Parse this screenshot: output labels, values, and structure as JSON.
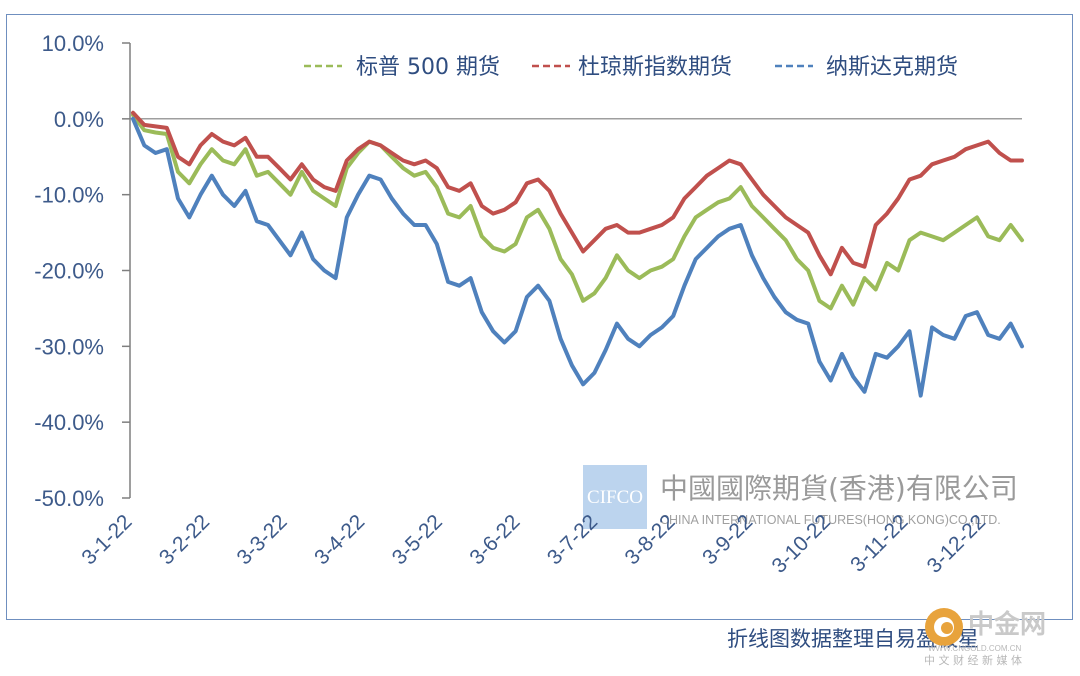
{
  "chart_data": {
    "type": "line",
    "title": "",
    "xlabel": "",
    "ylabel": "",
    "ylim": [
      -50,
      10
    ],
    "yticks": [
      10,
      0,
      -10,
      -20,
      -30,
      -40,
      -50
    ],
    "ytick_labels": [
      "10.0%",
      "0.0%",
      "-10.0%",
      "-20.0%",
      "-30.0%",
      "-40.0%",
      "-50.0%"
    ],
    "x_tick_labels": [
      "3-1-22",
      "3-2-22",
      "3-3-22",
      "3-4-22",
      "3-5-22",
      "3-6-22",
      "3-7-22",
      "3-8-22",
      "3-9-22",
      "3-10-22",
      "3-11-22",
      "3-12-22"
    ],
    "legend_position": "top",
    "grid": false,
    "series": [
      {
        "name": "标普 500 期货",
        "color": "#9bbb59",
        "values": [
          0.5,
          -1.5,
          -1.8,
          -2.0,
          -7.0,
          -8.5,
          -6.0,
          -4.0,
          -5.5,
          -6.0,
          -4.0,
          -7.5,
          -7.0,
          -8.5,
          -10.0,
          -7.0,
          -9.5,
          -10.5,
          -11.5,
          -6.5,
          -4.5,
          -3.0,
          -3.5,
          -5.0,
          -6.5,
          -7.5,
          -7.0,
          -9.0,
          -12.5,
          -13.0,
          -11.5,
          -15.5,
          -17.0,
          -17.5,
          -16.5,
          -13.0,
          -12.0,
          -14.5,
          -18.5,
          -20.5,
          -24.0,
          -23.0,
          -21.0,
          -18.0,
          -20.0,
          -21.0,
          -20.0,
          -19.5,
          -18.5,
          -15.5,
          -13.0,
          -12.0,
          -11.0,
          -10.5,
          -9.0,
          -11.5,
          -13.0,
          -14.5,
          -16.0,
          -18.5,
          -20.0,
          -24.0,
          -25.0,
          -22.0,
          -24.5,
          -21.0,
          -22.5,
          -19.0,
          -20.0,
          -16.0,
          -15.0,
          -15.5,
          -16.0,
          -15.0,
          -14.0,
          -13.0,
          -15.5,
          -16.0,
          -14.0,
          -16.0
        ]
      },
      {
        "name": "杜琼斯指数期货",
        "color": "#c0504d",
        "values": [
          0.8,
          -0.8,
          -1.0,
          -1.2,
          -5.0,
          -6.0,
          -3.5,
          -2.0,
          -3.0,
          -3.5,
          -2.5,
          -5.0,
          -5.0,
          -6.5,
          -8.0,
          -6.0,
          -8.0,
          -9.0,
          -9.5,
          -5.5,
          -4.0,
          -3.0,
          -3.5,
          -4.5,
          -5.5,
          -6.0,
          -5.5,
          -6.5,
          -9.0,
          -9.5,
          -8.5,
          -11.5,
          -12.5,
          -12.0,
          -11.0,
          -8.5,
          -8.0,
          -9.5,
          -12.5,
          -15.0,
          -17.5,
          -16.0,
          -14.5,
          -14.0,
          -15.0,
          -15.0,
          -14.5,
          -14.0,
          -13.0,
          -10.5,
          -9.0,
          -7.5,
          -6.5,
          -5.5,
          -6.0,
          -8.0,
          -10.0,
          -11.5,
          -13.0,
          -14.0,
          -15.0,
          -18.0,
          -20.5,
          -17.0,
          -19.0,
          -19.5,
          -14.0,
          -12.5,
          -10.5,
          -8.0,
          -7.5,
          -6.0,
          -5.5,
          -5.0,
          -4.0,
          -3.5,
          -3.0,
          -4.5,
          -5.5,
          -5.5
        ]
      },
      {
        "name": "纳斯达克期货",
        "color": "#4f81bd",
        "values": [
          0.0,
          -3.5,
          -4.5,
          -4.0,
          -10.5,
          -13.0,
          -10.0,
          -7.5,
          -10.0,
          -11.5,
          -9.5,
          -13.5,
          -14.0,
          -16.0,
          -18.0,
          -15.0,
          -18.5,
          -20.0,
          -21.0,
          -13.0,
          -10.0,
          -7.5,
          -8.0,
          -10.5,
          -12.5,
          -14.0,
          -14.0,
          -16.5,
          -21.5,
          -22.0,
          -21.0,
          -25.5,
          -28.0,
          -29.5,
          -28.0,
          -23.5,
          -22.0,
          -24.0,
          -29.0,
          -32.5,
          -35.0,
          -33.5,
          -30.5,
          -27.0,
          -29.0,
          -30.0,
          -28.5,
          -27.5,
          -26.0,
          -22.0,
          -18.5,
          -17.0,
          -15.5,
          -14.5,
          -14.0,
          -18.0,
          -21.0,
          -23.5,
          -25.5,
          -26.5,
          -27.0,
          -32.0,
          -34.5,
          -31.0,
          -34.0,
          -36.0,
          -31.0,
          -31.5,
          -30.0,
          -28.0,
          -36.5,
          -27.5,
          -28.5,
          -29.0,
          -26.0,
          -25.5,
          -28.5,
          -29.0,
          -27.0,
          -30.0
        ]
      }
    ]
  },
  "watermark": {
    "logo_text": "CIFCO",
    "company_cn": "中國國際期貨(香港)有限公司",
    "company_en": "CHINA INTERNATIONAL FUTURES(HONG KONG)CO.,LTD."
  },
  "caption": "折线图数据整理自易盈极星",
  "site": {
    "name_cn": "中金网",
    "subtitle": "中 文 财 经 新 媒 体",
    "url": "WWW.CNGOLD.COM.CN"
  },
  "colors": {
    "frame": "#6f8fbf",
    "axis": "#7f7f7f",
    "text": "#3d5a8a"
  }
}
